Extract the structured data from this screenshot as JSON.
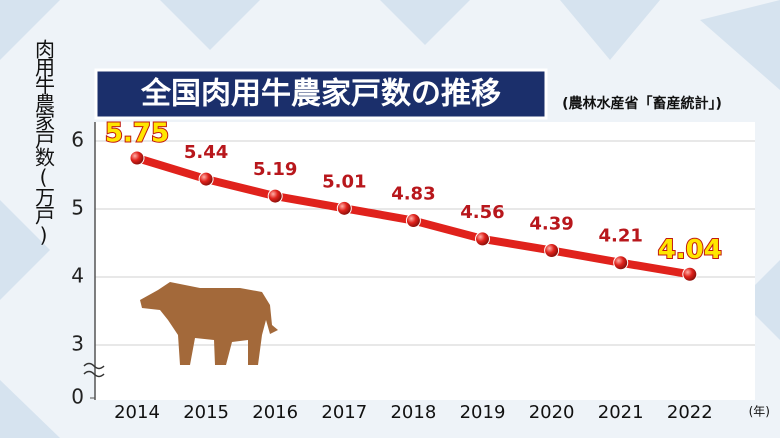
{
  "chart_data": {
    "type": "line",
    "title": "全国肉用牛農家戸数の推移",
    "subtitle": "(農林水産省「畜産統計」)",
    "y_label": "肉用牛農家戸数(万戸)",
    "x_unit": "(年)",
    "categories": [
      "2014",
      "2015",
      "2016",
      "2017",
      "2018",
      "2019",
      "2020",
      "2021",
      "2022"
    ],
    "values": [
      5.75,
      5.44,
      5.19,
      5.01,
      4.83,
      4.56,
      4.39,
      4.21,
      4.04
    ],
    "color": "#e0221c",
    "ylim": [
      0,
      6.4
    ],
    "yticks": [
      0,
      3,
      4,
      5,
      6
    ],
    "axis_break": true,
    "grid": true
  }
}
